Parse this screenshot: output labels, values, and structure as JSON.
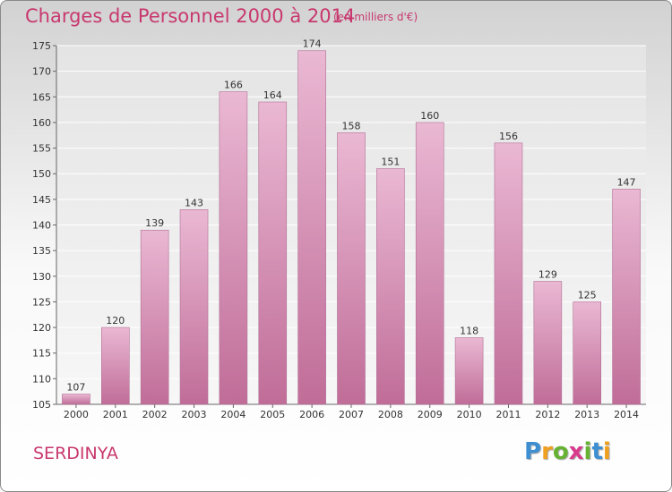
{
  "header": {
    "title": "Charges de Personnel 2000 à 2014",
    "unit": "(en milliers d'€)"
  },
  "footer": {
    "commune": "SERDINYA",
    "logo": [
      "P",
      "r",
      "o",
      "x",
      "i",
      "t",
      "i"
    ]
  },
  "colors": {
    "accent": "#c8386e",
    "bar_light": "#eab8d3",
    "bar_dark": "#c06d98",
    "logo": [
      "#3e8fd1",
      "#f0a020",
      "#66b232",
      "#d93a8c",
      "#66b232",
      "#3e8fd1",
      "#f0a020"
    ]
  },
  "chart_data": {
    "type": "bar",
    "title": "Charges de Personnel 2000 à 2014",
    "subtitle": "(en milliers d'€)",
    "xlabel": "",
    "ylabel": "",
    "categories": [
      "2000",
      "2001",
      "2002",
      "2003",
      "2004",
      "2005",
      "2006",
      "2007",
      "2008",
      "2009",
      "2010",
      "2011",
      "2012",
      "2013",
      "2014"
    ],
    "values": [
      107,
      120,
      139,
      143,
      166,
      164,
      174,
      158,
      151,
      160,
      118,
      156,
      129,
      125,
      147
    ],
    "ylim": [
      105,
      175
    ],
    "yticks": [
      105,
      110,
      115,
      120,
      125,
      130,
      135,
      140,
      145,
      150,
      155,
      160,
      165,
      170,
      175
    ],
    "grid": true
  }
}
